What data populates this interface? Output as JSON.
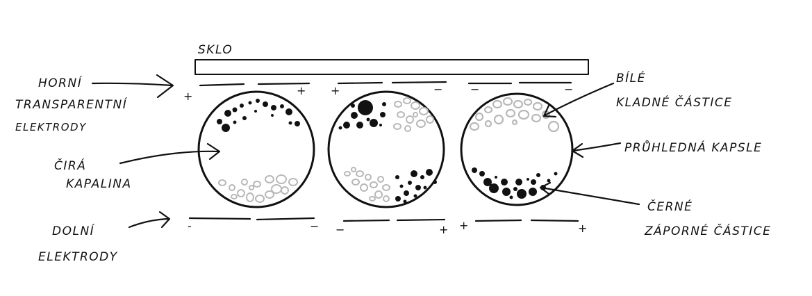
{
  "labels": {
    "glass": "SKLO",
    "top_electrodes": [
      "HORNÍ",
      "TRANSPARENTNÍ",
      "ELEKTRODY"
    ],
    "clear_liquid": [
      "ČIRÁ",
      "KAPALINA"
    ],
    "bottom_electrodes": [
      "DOLNÍ",
      "ELEKTRODY"
    ],
    "white_particles": [
      "BÍLÉ",
      "KLADNÉ ČÁSTICE"
    ],
    "capsule": "PRŮHLEDNÁ KAPSLE",
    "black_particles": [
      "ČERNÉ",
      "ZÁPORNÉ ČÁSTICE"
    ]
  },
  "signs": {
    "top": [
      "+",
      "+",
      "+",
      "−",
      "−",
      "−"
    ],
    "bottom": [
      "-",
      "−",
      "−",
      "+",
      "+",
      "+"
    ]
  },
  "colors": {
    "ink": "#111111",
    "white_particle": "#b8b8b8",
    "background": "#ffffff"
  }
}
